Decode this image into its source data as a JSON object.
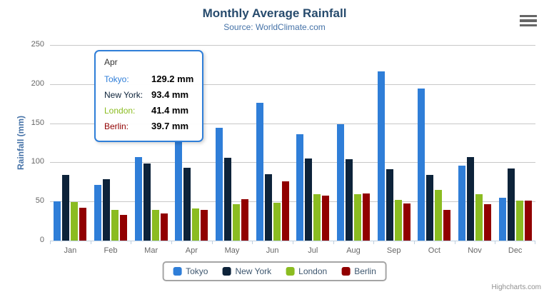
{
  "header": {
    "title": "Monthly Average Rainfall",
    "subtitle": "Source: WorldClimate.com"
  },
  "icons": {
    "context_menu": "hamburger"
  },
  "chart_data": {
    "type": "bar",
    "title": "Monthly Average Rainfall",
    "subtitle": "Source: WorldClimate.com",
    "categories": [
      "Jan",
      "Feb",
      "Mar",
      "Apr",
      "May",
      "Jun",
      "Jul",
      "Aug",
      "Sep",
      "Oct",
      "Nov",
      "Dec"
    ],
    "series": [
      {
        "name": "Tokyo",
        "color": "#2f7ed8",
        "values": [
          49.9,
          71.5,
          106.4,
          129.2,
          144.0,
          176.0,
          135.6,
          148.5,
          216.4,
          194.1,
          95.6,
          54.4
        ]
      },
      {
        "name": "New York",
        "color": "#0d233a",
        "values": [
          83.6,
          78.8,
          98.5,
          93.4,
          106.0,
          84.5,
          105.0,
          104.3,
          91.2,
          83.5,
          106.6,
          92.3
        ]
      },
      {
        "name": "London",
        "color": "#8bbc21",
        "values": [
          48.9,
          38.8,
          39.3,
          41.4,
          47.0,
          48.3,
          59.0,
          59.6,
          52.4,
          65.2,
          59.3,
          51.2
        ]
      },
      {
        "name": "Berlin",
        "color": "#910000",
        "values": [
          42.4,
          33.2,
          34.5,
          39.7,
          52.6,
          75.5,
          57.4,
          60.4,
          47.6,
          39.1,
          46.8,
          51.1
        ]
      }
    ],
    "xlabel": "",
    "ylabel": "Rainfall (mm)",
    "ylim": [
      0,
      250
    ],
    "yticks": [
      0,
      50,
      100,
      150,
      200,
      250
    ],
    "grid": true,
    "legend_position": "bottom"
  },
  "tooltip": {
    "header": "Apr",
    "rows": [
      {
        "name": "Tokyo:",
        "value": "129.2 mm",
        "color": "#2f7ed8"
      },
      {
        "name": "New York:",
        "value": "93.4 mm",
        "color": "#0d233a"
      },
      {
        "name": "London:",
        "value": "41.4 mm",
        "color": "#8bbc21"
      },
      {
        "name": "Berlin:",
        "value": "39.7 mm",
        "color": "#910000"
      }
    ]
  },
  "credits": {
    "label": "Highcharts.com"
  }
}
